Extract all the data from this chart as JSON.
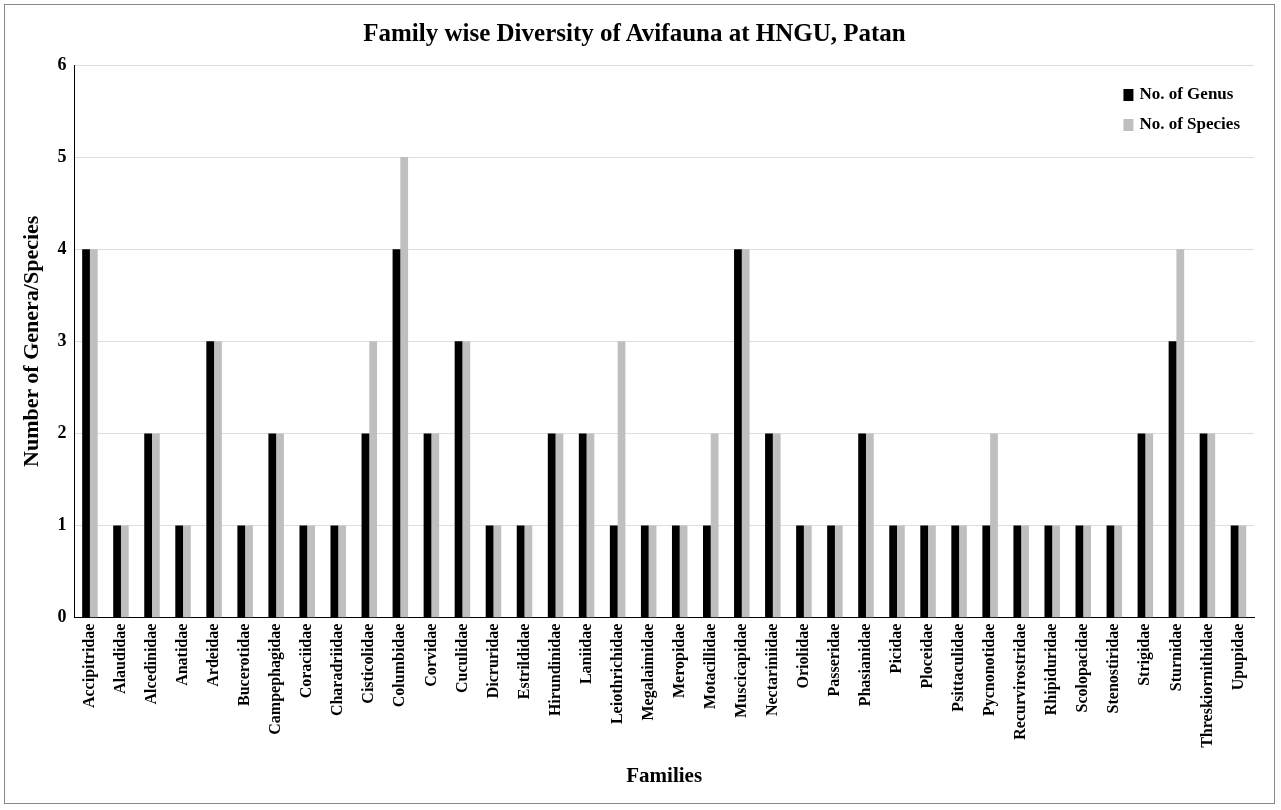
{
  "chart_data": {
    "type": "bar",
    "title": "Family wise Diversity of Avifauna at HNGU, Patan",
    "xlabel": "Families",
    "ylabel": "Number of Genera/Species",
    "categories": [
      "Accipitridae",
      "Alaudidae",
      "Alcedinidae",
      "Anatidae",
      "Ardeidae",
      "Bucerotidae",
      "Campephagidae",
      "Coraciidae",
      "Charadriidae",
      "Cisticolidae",
      "Columbidae",
      "Corvidae",
      "Cuculidae",
      "Dicruridae",
      "Estrildidae",
      "Hirundinidae",
      "Laniidae",
      "Leiothrichidae",
      "Megalaimidae",
      "Meropidae",
      "Motacillidae",
      "Muscicapidae",
      "Nectariniidae",
      "Oriolidae",
      "Passeridae",
      "Phasianidae",
      "Picidae",
      "Ploceidae",
      "Psittaculidae",
      "Pycnonotidae",
      "Recurvirostridae",
      "Rhipiduridae",
      "Scolopacidae",
      "Stenostiridae",
      "Strigidae",
      "Sturnidae",
      "Threskiornithidae",
      "Upupidae"
    ],
    "series": [
      {
        "name": "No. of Genus",
        "color": "#000000",
        "values": [
          4,
          1,
          2,
          1,
          3,
          1,
          2,
          1,
          1,
          2,
          4,
          2,
          3,
          1,
          1,
          2,
          2,
          1,
          1,
          1,
          1,
          4,
          2,
          1,
          1,
          2,
          1,
          1,
          1,
          1,
          1,
          1,
          1,
          1,
          2,
          3,
          2,
          1
        ]
      },
      {
        "name": "No. of Species",
        "color": "#bfbfbf",
        "values": [
          4,
          1,
          2,
          1,
          3,
          1,
          2,
          1,
          1,
          3,
          5,
          2,
          3,
          1,
          1,
          2,
          2,
          3,
          1,
          1,
          2,
          4,
          2,
          1,
          1,
          2,
          1,
          1,
          1,
          2,
          1,
          1,
          1,
          1,
          2,
          4,
          2,
          1
        ]
      }
    ],
    "ylim": [
      0,
      6
    ],
    "yticks": [
      0,
      1,
      2,
      3,
      4,
      5,
      6
    ],
    "grid": "y",
    "legend": "top right"
  }
}
